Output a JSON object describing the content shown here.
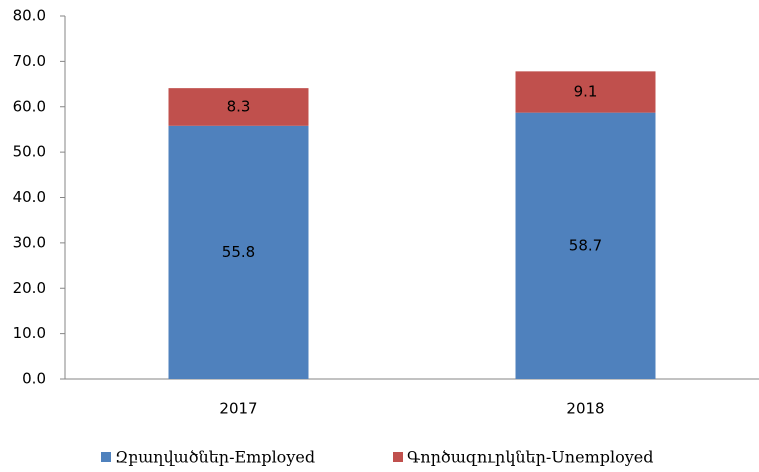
{
  "chart_data": {
    "type": "stacked_bar",
    "categories": [
      "2017",
      "2018"
    ],
    "series": [
      {
        "name": "Զբաղվածներ-Employed",
        "color": "#4f81bd",
        "values": [
          55.8,
          58.7
        ]
      },
      {
        "name": "Գործազուրկներ-Unemployed",
        "color": "#c0504d",
        "values": [
          8.3,
          9.1
        ]
      }
    ],
    "ylim": [
      0,
      80
    ],
    "yticks": [
      {
        "value": 0,
        "label": "0.0"
      },
      {
        "value": 10,
        "label": "10.0"
      },
      {
        "value": 20,
        "label": "20.0"
      },
      {
        "value": 30,
        "label": "30.0"
      },
      {
        "value": 40,
        "label": "40.0"
      },
      {
        "value": 50,
        "label": "50.0"
      },
      {
        "value": 60,
        "label": "60.0"
      },
      {
        "value": 70,
        "label": "70.0"
      },
      {
        "value": 80,
        "label": "80.0"
      }
    ],
    "grid": false,
    "legend": "bottom"
  }
}
